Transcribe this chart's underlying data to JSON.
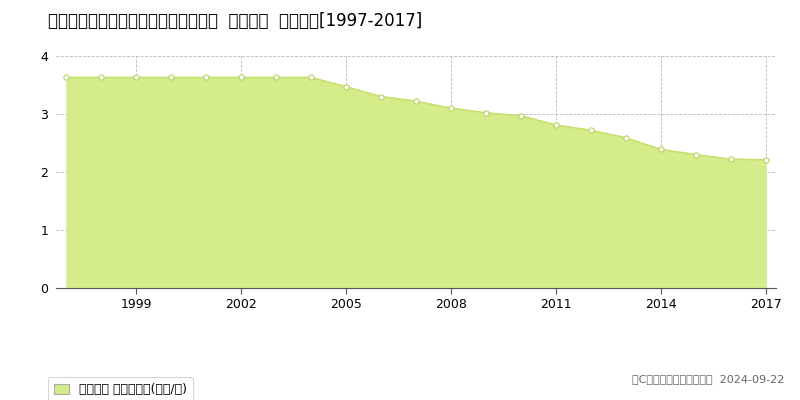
{
  "title": "北海道紋別市大山町２丁目３７番４５  基準地価  地価推移[1997-2017]",
  "years": [
    1997,
    1998,
    1999,
    2000,
    2001,
    2002,
    2003,
    2004,
    2005,
    2006,
    2007,
    2008,
    2009,
    2010,
    2011,
    2012,
    2013,
    2014,
    2015,
    2016,
    2017
  ],
  "values": [
    3.63,
    3.63,
    3.63,
    3.63,
    3.63,
    3.63,
    3.63,
    3.63,
    3.47,
    3.3,
    3.22,
    3.1,
    3.02,
    2.97,
    2.81,
    2.72,
    2.59,
    2.39,
    2.3,
    2.22,
    2.21
  ],
  "ylim": [
    0,
    4
  ],
  "yticks": [
    0,
    1,
    2,
    3,
    4
  ],
  "xticks": [
    1999,
    2002,
    2005,
    2008,
    2011,
    2014,
    2017
  ],
  "line_color": "#c8e06e",
  "fill_color": "#d4ed8a",
  "marker_facecolor": "#ffffff",
  "marker_edgecolor": "#b8d060",
  "grid_color": "#bbbbbb",
  "bg_color": "#ffffff",
  "plot_bg_color": "#ffffff",
  "legend_label": "基準地価 平均坤単価(万円/坤)",
  "copyright_text": "（C）土地価格ドットコム  2024-09-22",
  "title_fontsize": 12,
  "axis_fontsize": 9,
  "legend_fontsize": 9,
  "copyright_fontsize": 8
}
